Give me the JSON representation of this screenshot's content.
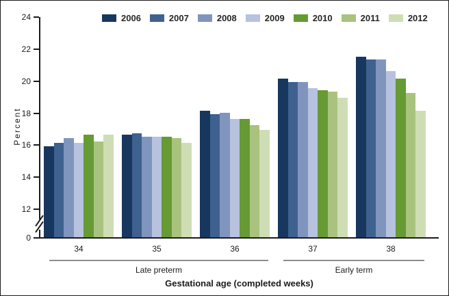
{
  "chart_data": {
    "type": "bar",
    "title": "",
    "ylabel": "Percent",
    "xlabel": "Gestational age (completed weeks)",
    "categories": [
      "34",
      "35",
      "36",
      "37",
      "38"
    ],
    "category_groups": [
      {
        "label": "Late preterm",
        "span": [
          0,
          2
        ]
      },
      {
        "label": "Early term",
        "span": [
          3,
          4
        ]
      }
    ],
    "series": [
      {
        "name": "2006",
        "color": "#17375E",
        "values": [
          15.9,
          16.6,
          18.1,
          20.1,
          21.5
        ]
      },
      {
        "name": "2007",
        "color": "#3E618F",
        "values": [
          16.1,
          16.7,
          17.9,
          19.9,
          21.3
        ]
      },
      {
        "name": "2008",
        "color": "#8095BE",
        "values": [
          16.4,
          16.5,
          18.0,
          19.9,
          21.3
        ]
      },
      {
        "name": "2009",
        "color": "#B7C2DE",
        "values": [
          16.1,
          16.5,
          17.6,
          19.5,
          20.6
        ]
      },
      {
        "name": "2010",
        "color": "#669A33",
        "values": [
          16.6,
          16.5,
          17.6,
          19.4,
          20.1
        ]
      },
      {
        "name": "2011",
        "color": "#A9C37F",
        "values": [
          16.2,
          16.4,
          17.2,
          19.3,
          19.2
        ]
      },
      {
        "name": "2012",
        "color": "#CFDDB5",
        "values": [
          16.6,
          16.1,
          16.9,
          18.9,
          18.1
        ]
      }
    ],
    "yticks": [
      0,
      12,
      14,
      16,
      18,
      20,
      22,
      24
    ],
    "ylim_display": [
      12,
      24
    ],
    "axis_break": true,
    "legend_position": "top",
    "grid": "off"
  }
}
